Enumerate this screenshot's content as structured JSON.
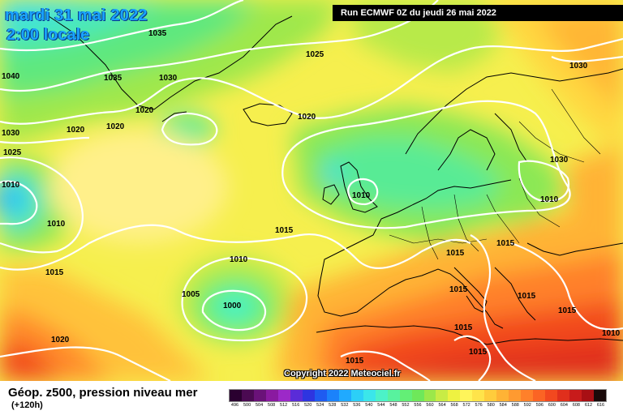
{
  "header": {
    "date": "mardi 31 mai 2022",
    "time": "2:00 locale",
    "run": "Run ECMWF 0Z du jeudi 26 mai 2022"
  },
  "footer": {
    "title": "Géop. z500, pression niveau mer",
    "lead": "(+120h)",
    "copyright": "Copyright 2022 Meteociel.fr"
  },
  "pressure_labels": [
    "1035",
    "1025",
    "1030",
    "1040",
    "1035",
    "1030",
    "1020",
    "1020",
    "1030",
    "1020",
    "1020",
    "1025",
    "1010",
    "1010",
    "1010",
    "1015",
    "1015",
    "1010",
    "1005",
    "1000",
    "1020",
    "1030",
    "1010",
    "1015",
    "1015",
    "1015",
    "1015",
    "1015",
    "1015",
    "1015",
    "1015",
    "1010"
  ],
  "scale": {
    "values": [
      "496",
      "500",
      "504",
      "508",
      "512",
      "516",
      "520",
      "524",
      "528",
      "532",
      "536",
      "540",
      "544",
      "548",
      "552",
      "556",
      "560",
      "564",
      "568",
      "572",
      "576",
      "580",
      "584",
      "588",
      "592",
      "596",
      "600",
      "604",
      "608",
      "612",
      "616"
    ],
    "colors": [
      "#2a0030",
      "#4b0a52",
      "#6a1278",
      "#8a1aa0",
      "#9c29c8",
      "#5a2cd8",
      "#2e35e0",
      "#1f5bf0",
      "#1b82fb",
      "#20aaff",
      "#2ccff7",
      "#3be6ea",
      "#4cf2c8",
      "#58f29e",
      "#63ef76",
      "#6ee85a",
      "#9be84a",
      "#c8ec45",
      "#eef241",
      "#fff55a",
      "#ffe44a",
      "#ffcc3c",
      "#ffb335",
      "#ff9a30",
      "#ff802a",
      "#fb6424",
      "#f2481f",
      "#e02f1c",
      "#c81b1b",
      "#a80f14",
      "#1a0a0a"
    ]
  },
  "colors": {
    "title_blue": "#19a4ff",
    "isobar": "#ffffff",
    "coast": "#000000"
  }
}
